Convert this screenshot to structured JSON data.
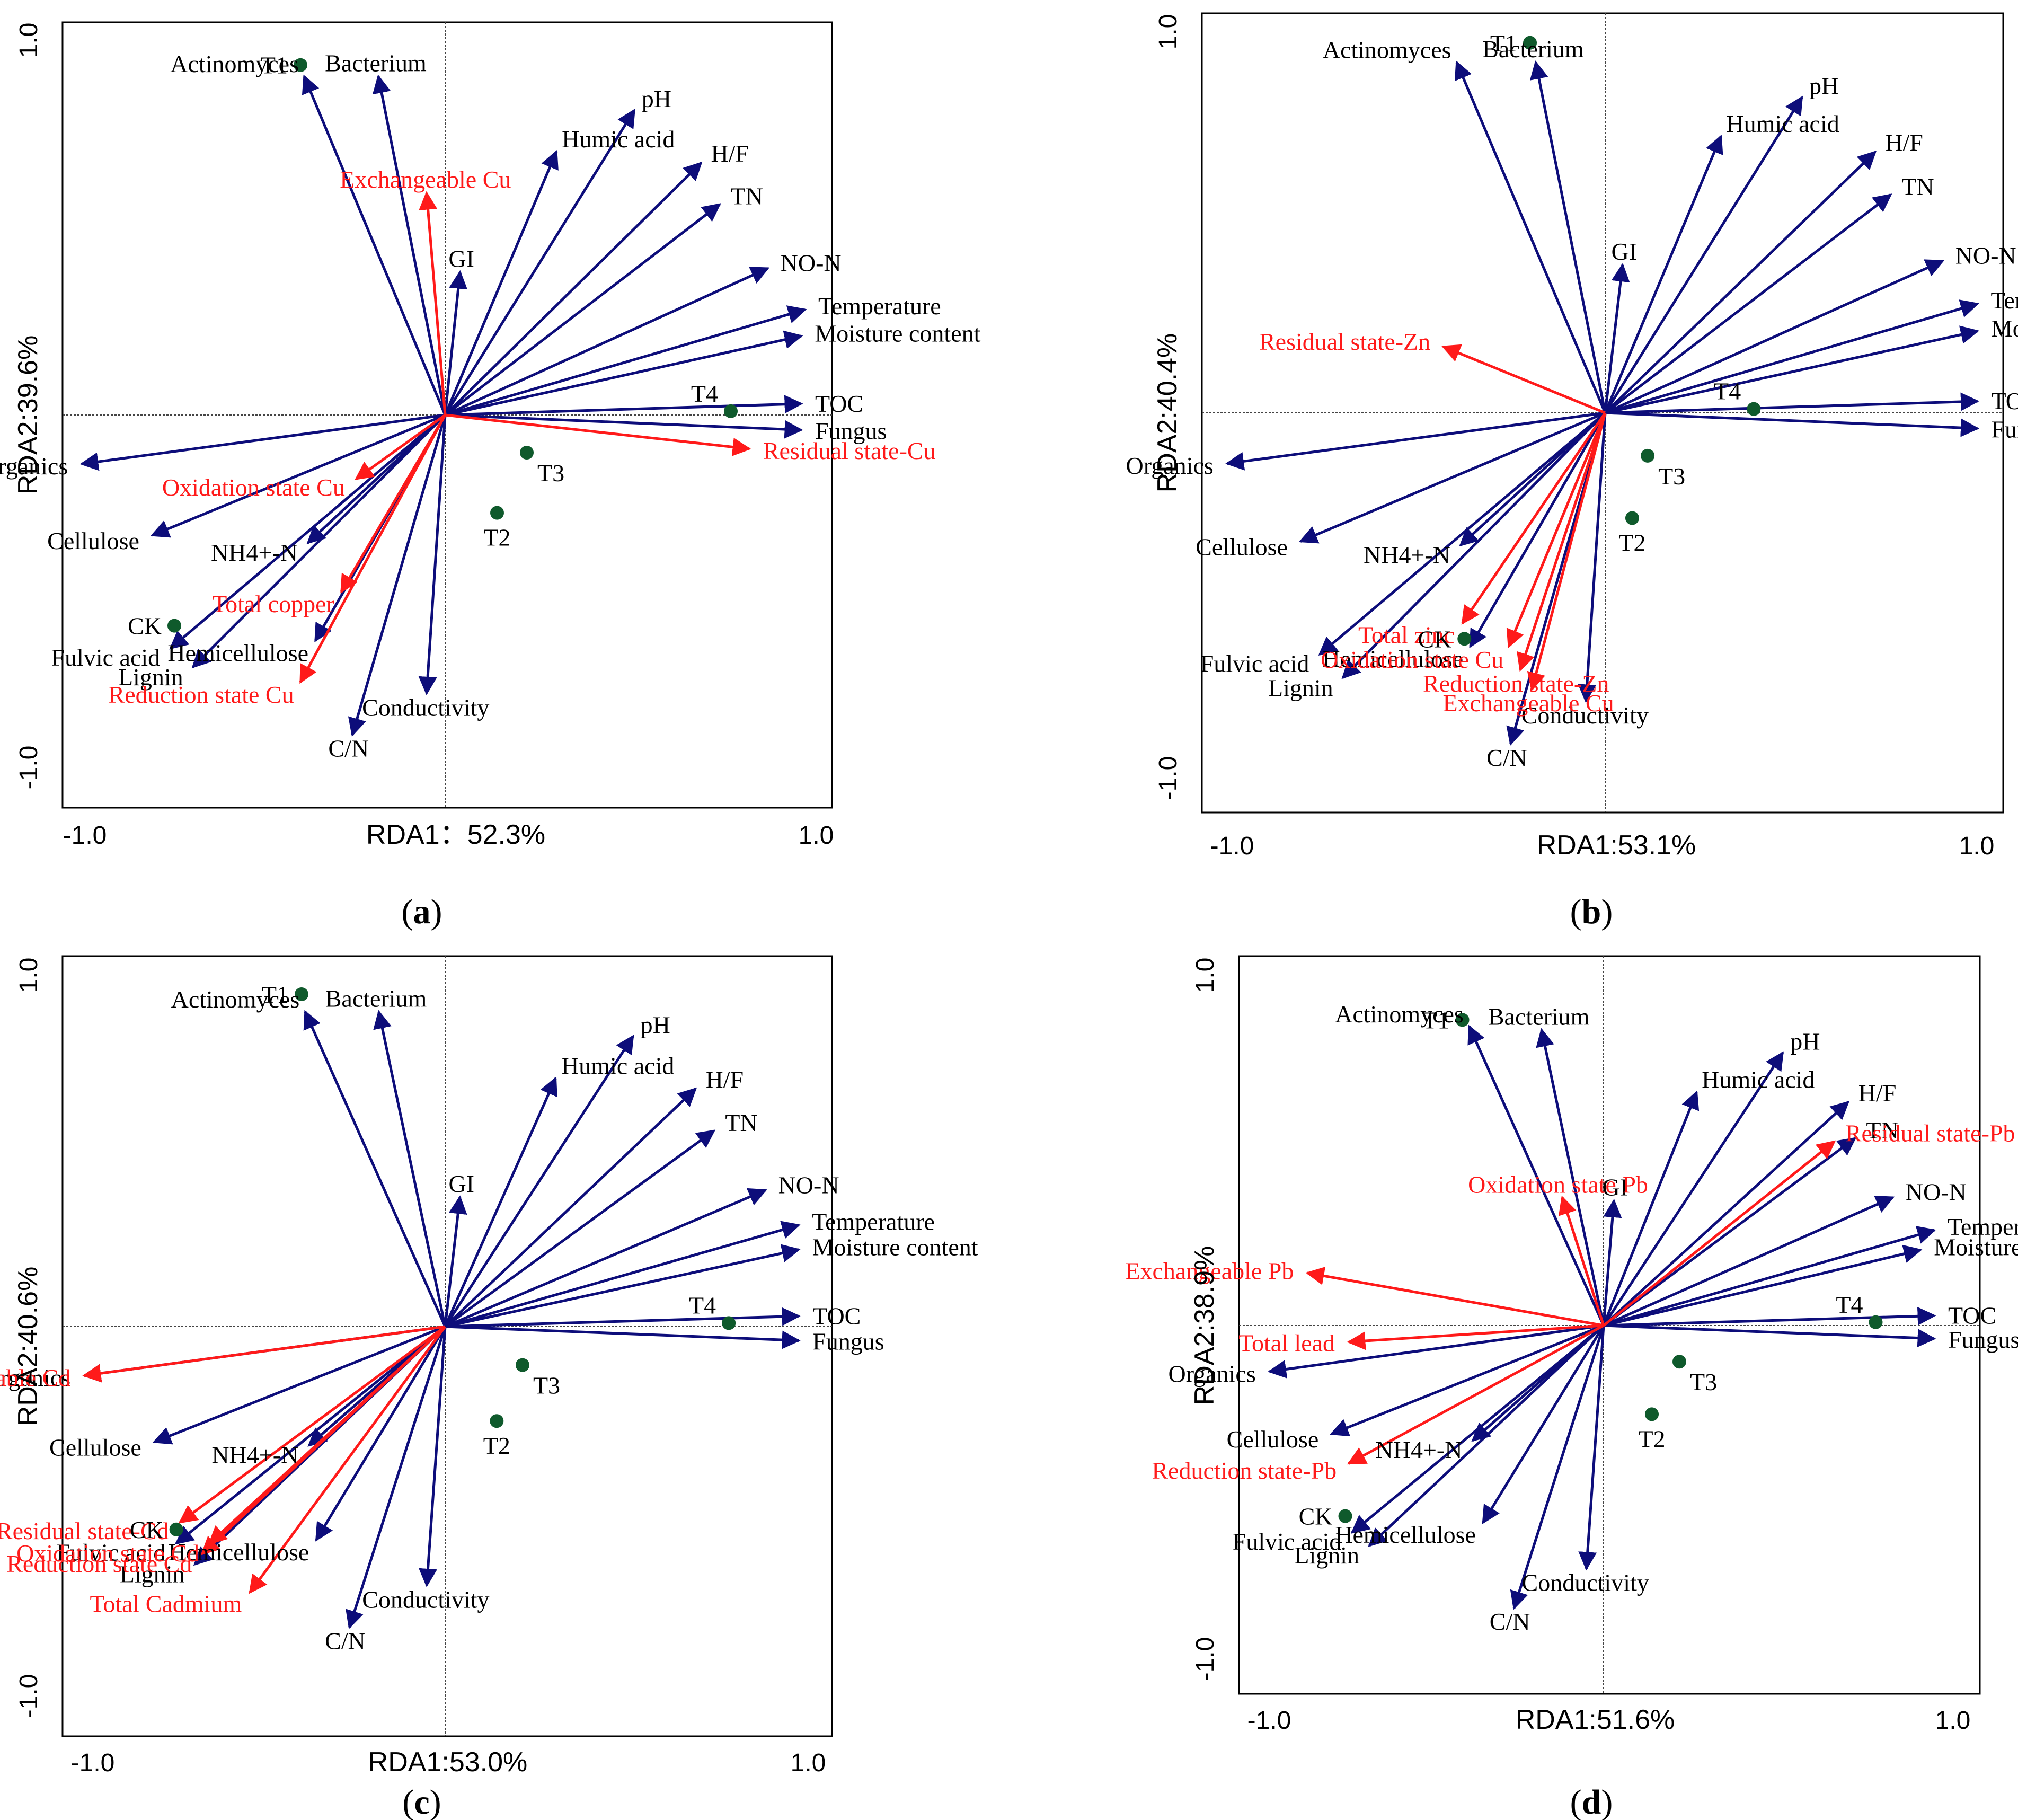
{
  "figure": {
    "colors": {
      "env": "#0d0d7a",
      "metal": "#ff1a1a",
      "point": "#0f5a2c",
      "text": "#000000"
    }
  },
  "chart_data": [
    {
      "type": "scatter",
      "panel": "a",
      "xlabel": "RDA1：52.3%",
      "ylabel": "RDA2:39.6%",
      "xlim": [
        -1.0,
        1.0
      ],
      "ylim": [
        -1.0,
        1.0
      ],
      "xticks": [
        "-1.0",
        "1.0"
      ],
      "yticks": [
        "1.0",
        "-1.0"
      ],
      "arrows": [
        {
          "label": "Bacterium",
          "x": -0.18,
          "y": 0.9,
          "group": "env"
        },
        {
          "label": "Actinomyces",
          "x": -0.38,
          "y": 0.9,
          "group": "env"
        },
        {
          "label": "Humic acid",
          "x": 0.3,
          "y": 0.7,
          "group": "env"
        },
        {
          "label": "pH",
          "x": 0.51,
          "y": 0.81,
          "group": "env"
        },
        {
          "label": "H/F",
          "x": 0.69,
          "y": 0.67,
          "group": "env"
        },
        {
          "label": "TN",
          "x": 0.74,
          "y": 0.56,
          "group": "env"
        },
        {
          "label": "NO-N",
          "x": 0.87,
          "y": 0.39,
          "group": "env"
        },
        {
          "label": "Temperature",
          "x": 0.97,
          "y": 0.28,
          "group": "env"
        },
        {
          "label": "Moisture content",
          "x": 0.96,
          "y": 0.21,
          "group": "env"
        },
        {
          "label": "TOC",
          "x": 0.96,
          "y": 0.03,
          "group": "env"
        },
        {
          "label": "Fungus",
          "x": 0.96,
          "y": -0.04,
          "group": "env"
        },
        {
          "label": "GI",
          "x": 0.04,
          "y": 0.38,
          "group": "env"
        },
        {
          "label": "Organics",
          "x": -0.98,
          "y": -0.13,
          "group": "env"
        },
        {
          "label": "Cellulose",
          "x": -0.79,
          "y": -0.32,
          "group": "env"
        },
        {
          "label": "NH4+-N",
          "x": -0.37,
          "y": -0.34,
          "group": "env"
        },
        {
          "label": "Fulvic acid",
          "x": -0.74,
          "y": -0.62,
          "group": "env"
        },
        {
          "label": "Lignin",
          "x": -0.68,
          "y": -0.67,
          "group": "env"
        },
        {
          "label": "Hemicellulose",
          "x": -0.35,
          "y": -0.6,
          "group": "env"
        },
        {
          "label": "Conductivity",
          "x": -0.05,
          "y": -0.74,
          "group": "env"
        },
        {
          "label": "C/N",
          "x": -0.25,
          "y": -0.85,
          "group": "env"
        },
        {
          "label": "Exchangeable Cu",
          "x": -0.05,
          "y": 0.59,
          "group": "metal"
        },
        {
          "label": "Oxidation state Cu",
          "x": -0.24,
          "y": -0.17,
          "group": "metal"
        },
        {
          "label": "Total copper",
          "x": -0.28,
          "y": -0.47,
          "group": "metal"
        },
        {
          "label": "Reduction state Cu",
          "x": -0.39,
          "y": -0.71,
          "group": "metal"
        },
        {
          "label": "Residual state-Cu",
          "x": 0.82,
          "y": -0.09,
          "group": "metal"
        }
      ],
      "points": [
        {
          "label": "T1",
          "x": -0.39,
          "y": 0.93
        },
        {
          "label": "T4",
          "x": 0.77,
          "y": 0.01
        },
        {
          "label": "T3",
          "x": 0.22,
          "y": -0.1
        },
        {
          "label": "T2",
          "x": 0.14,
          "y": -0.26
        },
        {
          "label": "CK",
          "x": -0.73,
          "y": -0.56
        }
      ]
    },
    {
      "type": "scatter",
      "panel": "b",
      "xlabel": "RDA1:53.1%",
      "ylabel": "RDA2:40.4%",
      "xlim": [
        -1.0,
        1.0
      ],
      "ylim": [
        -1.0,
        1.0
      ],
      "xticks": [
        "-1.0",
        "1.0"
      ],
      "yticks": [
        "1.0",
        "-1.0"
      ],
      "arrows": [
        {
          "label": "Bacterium",
          "x": -0.36,
          "y": 0.9,
          "group": "env"
        },
        {
          "label": "Actinomyces",
          "x": -0.77,
          "y": 0.9,
          "group": "env"
        },
        {
          "label": "Humic acid",
          "x": 0.6,
          "y": 0.71,
          "group": "env"
        },
        {
          "label": "pH",
          "x": 1.02,
          "y": 0.81,
          "group": "env"
        },
        {
          "label": "H/F",
          "x": 1.4,
          "y": 0.67,
          "group": "env"
        },
        {
          "label": "TN",
          "x": 1.48,
          "y": 0.56,
          "group": "env"
        },
        {
          "label": "NO-N",
          "x": 1.75,
          "y": 0.39,
          "group": "env"
        },
        {
          "label": "Temperature",
          "x": 1.93,
          "y": 0.28,
          "group": "env"
        },
        {
          "label": "Moisture content",
          "x": 1.93,
          "y": 0.21,
          "group": "env"
        },
        {
          "label": "TOC",
          "x": 1.93,
          "y": 0.03,
          "group": "env"
        },
        {
          "label": "Fungus",
          "x": 1.93,
          "y": -0.04,
          "group": "env"
        },
        {
          "label": "GI",
          "x": 0.09,
          "y": 0.38,
          "group": "env"
        },
        {
          "label": "Organics",
          "x": -1.96,
          "y": -0.13,
          "group": "env"
        },
        {
          "label": "Cellulose",
          "x": -1.58,
          "y": -0.33,
          "group": "env"
        },
        {
          "label": "NH4+-N",
          "x": -0.75,
          "y": -0.34,
          "group": "env"
        },
        {
          "label": "Fulvic acid",
          "x": -1.48,
          "y": -0.62,
          "group": "env"
        },
        {
          "label": "Lignin",
          "x": -1.36,
          "y": -0.68,
          "group": "env"
        },
        {
          "label": "Hemicellulose",
          "x": -0.7,
          "y": -0.6,
          "group": "env"
        },
        {
          "label": "Conductivity",
          "x": -0.1,
          "y": -0.74,
          "group": "env"
        },
        {
          "label": "C/N",
          "x": -0.49,
          "y": -0.85,
          "group": "env"
        },
        {
          "label": "Residual state-Zn",
          "x": -0.84,
          "y": 0.17,
          "group": "metal"
        },
        {
          "label": "Total zinc",
          "x": -0.74,
          "y": -0.54,
          "group": "metal"
        },
        {
          "label": "Reduction state-Zn",
          "x": -0.44,
          "y": -0.66,
          "group": "metal"
        },
        {
          "label": "Exchangeable Cu",
          "x": -0.38,
          "y": -0.71,
          "group": "metal"
        },
        {
          "label": "Oxidation state Cu",
          "x": -0.5,
          "y": -0.6,
          "group": "metal"
        }
      ],
      "points": [
        {
          "label": "T1",
          "x": -0.39,
          "y": 0.95
        },
        {
          "label": "T4",
          "x": 0.77,
          "y": 0.01
        },
        {
          "label": "T3",
          "x": 0.22,
          "y": -0.11
        },
        {
          "label": "T2",
          "x": 0.14,
          "y": -0.27
        },
        {
          "label": "CK",
          "x": -0.73,
          "y": -0.58
        }
      ]
    },
    {
      "type": "scatter",
      "panel": "c",
      "xlabel": "RDA1:53.0%",
      "ylabel": "RDA2:40.6%",
      "xlim": [
        -1.0,
        1.0
      ],
      "ylim": [
        -1.0,
        1.0
      ],
      "xticks": [
        "-1.0",
        "1.0"
      ],
      "yticks": [
        "1.0",
        "-1.0"
      ],
      "arrows": [
        {
          "label": "Bacterium",
          "x": -0.18,
          "y": 0.9,
          "group": "env"
        },
        {
          "label": "Actinomyces",
          "x": -0.38,
          "y": 0.9,
          "group": "env"
        },
        {
          "label": "Humic acid",
          "x": 0.3,
          "y": 0.71,
          "group": "env"
        },
        {
          "label": "pH",
          "x": 0.51,
          "y": 0.83,
          "group": "env"
        },
        {
          "label": "H/F",
          "x": 0.68,
          "y": 0.68,
          "group": "env"
        },
        {
          "label": "TN",
          "x": 0.73,
          "y": 0.56,
          "group": "env"
        },
        {
          "label": "NO-N",
          "x": 0.87,
          "y": 0.39,
          "group": "env"
        },
        {
          "label": "Temperature",
          "x": 0.96,
          "y": 0.29,
          "group": "env"
        },
        {
          "label": "Moisture content",
          "x": 0.96,
          "y": 0.22,
          "group": "env"
        },
        {
          "label": "TOC",
          "x": 0.96,
          "y": 0.03,
          "group": "env"
        },
        {
          "label": "Fungus",
          "x": 0.96,
          "y": -0.04,
          "group": "env"
        },
        {
          "label": "GI",
          "x": 0.04,
          "y": 0.37,
          "group": "env"
        },
        {
          "label": "Organics",
          "x": -0.98,
          "y": -0.14,
          "group": "env"
        },
        {
          "label": "Cellulose",
          "x": -0.79,
          "y": -0.33,
          "group": "env"
        },
        {
          "label": "NH4+-N",
          "x": -0.37,
          "y": -0.34,
          "group": "env"
        },
        {
          "label": "Fulvic acid",
          "x": -0.73,
          "y": -0.62,
          "group": "env"
        },
        {
          "label": "Lignin",
          "x": -0.68,
          "y": -0.68,
          "group": "env"
        },
        {
          "label": "Hemicellulose",
          "x": -0.35,
          "y": -0.61,
          "group": "env"
        },
        {
          "label": "Conductivity",
          "x": -0.05,
          "y": -0.74,
          "group": "env"
        },
        {
          "label": "C/N",
          "x": -0.26,
          "y": -0.86,
          "group": "env"
        },
        {
          "label": "Exchangeable Cd",
          "x": -0.98,
          "y": -0.14,
          "group": "metal"
        },
        {
          "label": "Residual state-Cd",
          "x": -0.72,
          "y": -0.56,
          "group": "metal"
        },
        {
          "label": "Reduction state Cd",
          "x": -0.66,
          "y": -0.65,
          "group": "metal"
        },
        {
          "label": "Oxidation state Cd",
          "x": -0.64,
          "y": -0.62,
          "group": "metal"
        },
        {
          "label": "Total Cadmium",
          "x": -0.53,
          "y": -0.76,
          "group": "metal"
        }
      ],
      "points": [
        {
          "label": "T1",
          "x": -0.39,
          "y": 0.95
        },
        {
          "label": "T4",
          "x": 0.77,
          "y": 0.01
        },
        {
          "label": "T3",
          "x": 0.21,
          "y": -0.11
        },
        {
          "label": "T2",
          "x": 0.14,
          "y": -0.27
        },
        {
          "label": "CK",
          "x": -0.73,
          "y": -0.58
        }
      ]
    },
    {
      "type": "scatter",
      "panel": "d",
      "xlabel": "RDA1:51.6%",
      "ylabel": "RDA2:38.9%",
      "xlim": [
        -1.0,
        1.0
      ],
      "ylim": [
        -1.0,
        1.0
      ],
      "xticks": [
        "-1.0",
        "1.0"
      ],
      "yticks": [
        "1.0",
        "-1.0"
      ],
      "arrows": [
        {
          "label": "Bacterium",
          "x": -0.18,
          "y": 0.9,
          "group": "env"
        },
        {
          "label": "Actinomyces",
          "x": -0.39,
          "y": 0.91,
          "group": "env"
        },
        {
          "label": "Humic acid",
          "x": 0.27,
          "y": 0.71,
          "group": "env"
        },
        {
          "label": "pH",
          "x": 0.52,
          "y": 0.83,
          "group": "env"
        },
        {
          "label": "H/F",
          "x": 0.71,
          "y": 0.68,
          "group": "env"
        },
        {
          "label": "TN",
          "x": 0.73,
          "y": 0.57,
          "group": "env"
        },
        {
          "label": "NO-N",
          "x": 0.84,
          "y": 0.39,
          "group": "env"
        },
        {
          "label": "Temperature",
          "x": 0.96,
          "y": 0.29,
          "group": "env"
        },
        {
          "label": "Moisture content",
          "x": 0.92,
          "y": 0.23,
          "group": "env"
        },
        {
          "label": "TOC",
          "x": 0.96,
          "y": 0.03,
          "group": "env"
        },
        {
          "label": "Fungus",
          "x": 0.96,
          "y": -0.04,
          "group": "env"
        },
        {
          "label": "GI",
          "x": 0.03,
          "y": 0.38,
          "group": "env"
        },
        {
          "label": "Organics",
          "x": -0.97,
          "y": -0.14,
          "group": "env"
        },
        {
          "label": "Cellulose",
          "x": -0.79,
          "y": -0.33,
          "group": "env"
        },
        {
          "label": "NH4+-N",
          "x": -0.38,
          "y": -0.35,
          "group": "env"
        },
        {
          "label": "Fulvic acid",
          "x": -0.73,
          "y": -0.63,
          "group": "env"
        },
        {
          "label": "Lignin",
          "x": -0.68,
          "y": -0.67,
          "group": "env"
        },
        {
          "label": "Hemicellulose",
          "x": -0.35,
          "y": -0.6,
          "group": "env"
        },
        {
          "label": "Conductivity",
          "x": -0.05,
          "y": -0.74,
          "group": "env"
        },
        {
          "label": "C/N",
          "x": -0.26,
          "y": -0.86,
          "group": "env"
        },
        {
          "label": "Residual state-Pb",
          "x": 0.67,
          "y": 0.56,
          "group": "metal"
        },
        {
          "label": "Oxidation state Pb",
          "x": -0.12,
          "y": 0.39,
          "group": "metal"
        },
        {
          "label": "Exchangeable Pb",
          "x": -0.86,
          "y": 0.16,
          "group": "metal"
        },
        {
          "label": "Total lead",
          "x": -0.74,
          "y": -0.05,
          "group": "metal"
        },
        {
          "label": "Reduction state-Pb",
          "x": -0.74,
          "y": -0.42,
          "group": "metal"
        }
      ],
      "points": [
        {
          "label": "T1",
          "x": -0.41,
          "y": 0.93
        },
        {
          "label": "T4",
          "x": 0.79,
          "y": 0.01
        },
        {
          "label": "T3",
          "x": 0.22,
          "y": -0.11
        },
        {
          "label": "T2",
          "x": 0.14,
          "y": -0.27
        },
        {
          "label": "CK",
          "x": -0.75,
          "y": -0.58
        }
      ]
    }
  ],
  "captions": [
    {
      "open": "(",
      "letter": "a",
      "close": ")"
    },
    {
      "open": "(",
      "letter": "b",
      "close": ")"
    },
    {
      "open": "(",
      "letter": "c",
      "close": ")"
    },
    {
      "open": "(",
      "letter": "d",
      "close": ")"
    }
  ]
}
